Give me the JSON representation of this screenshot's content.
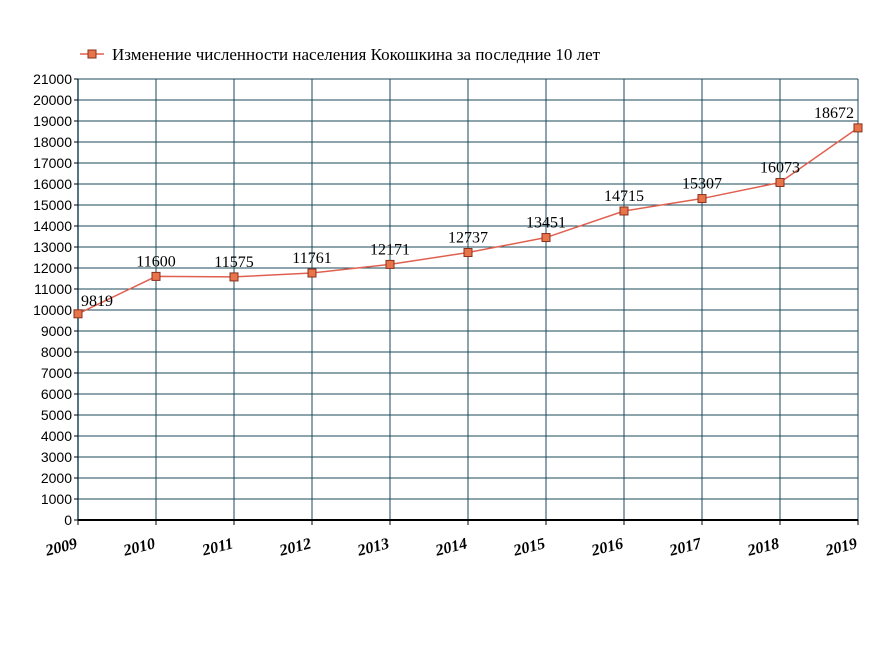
{
  "chart_data": {
    "type": "line",
    "title": "",
    "xlabel": "",
    "ylabel": "",
    "ylim": [
      0,
      21000
    ],
    "ytick_step": 1000,
    "grid": true,
    "legend_position": "top-left",
    "colors": {
      "line": "#e06050",
      "marker_fill": "#e8744a",
      "marker_stroke": "#8a3020",
      "grid": "#1b4a5a"
    },
    "categories": [
      "2009",
      "2010",
      "2011",
      "2012",
      "2013",
      "2014",
      "2015",
      "2016",
      "2017",
      "2018",
      "2019"
    ],
    "series": [
      {
        "name": "Изменение численности населения Кокошкина за последние 10 лет",
        "values": [
          9819,
          11600,
          11575,
          11761,
          12171,
          12737,
          13451,
          14715,
          15307,
          16073,
          18672
        ],
        "labels": [
          "9819",
          "11600",
          "11575",
          "11761",
          "12171",
          "12737",
          "13451",
          "14715",
          "15307",
          "16073",
          "18672"
        ]
      }
    ]
  }
}
